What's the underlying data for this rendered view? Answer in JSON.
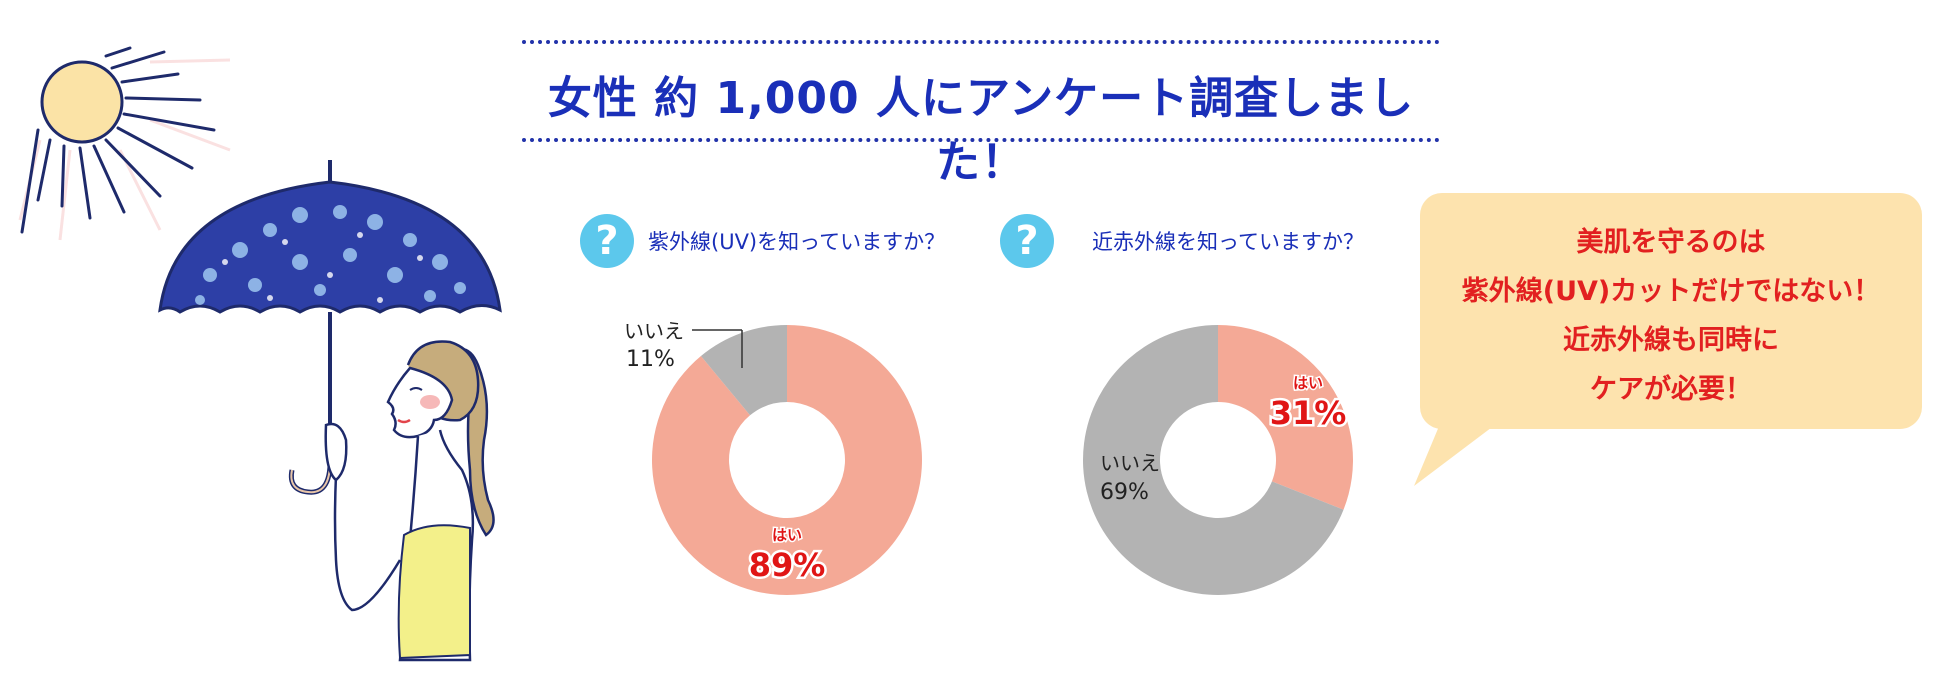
{
  "survey": {
    "title": "女性 約 1,000 人にアンケート調査しました！"
  },
  "questions": [
    {
      "text": "紫外線(UV)を知っていますか？"
    },
    {
      "text": "近赤外線を知っていますか？"
    }
  ],
  "colors": {
    "title": "#1a2fb8",
    "yes": "#f4a996",
    "no": "#b3b3b3",
    "yes_label": "#e01515",
    "bubble_bg": "#fde3ae",
    "bubble_text": "#e22020",
    "question_icon": "#5cc8ec"
  },
  "icons": {
    "question": "question-mark-icon"
  },
  "chart_data": [
    {
      "type": "pie",
      "title": "紫外線(UV)を知っていますか？",
      "slices": [
        {
          "label": "はい",
          "value": 89,
          "value_label": "89%"
        },
        {
          "label": "いいえ",
          "value": 11,
          "value_label": "11%"
        }
      ]
    },
    {
      "type": "pie",
      "title": "近赤外線を知っていますか？",
      "slices": [
        {
          "label": "はい",
          "value": 31,
          "value_label": "31%"
        },
        {
          "label": "いいえ",
          "value": 69,
          "value_label": "69%"
        }
      ]
    }
  ],
  "bubble": {
    "lines": [
      "美肌を守るのは",
      "紫外線(UV)カットだけではない！",
      "近赤外線も同時に",
      "ケアが必要！"
    ]
  }
}
